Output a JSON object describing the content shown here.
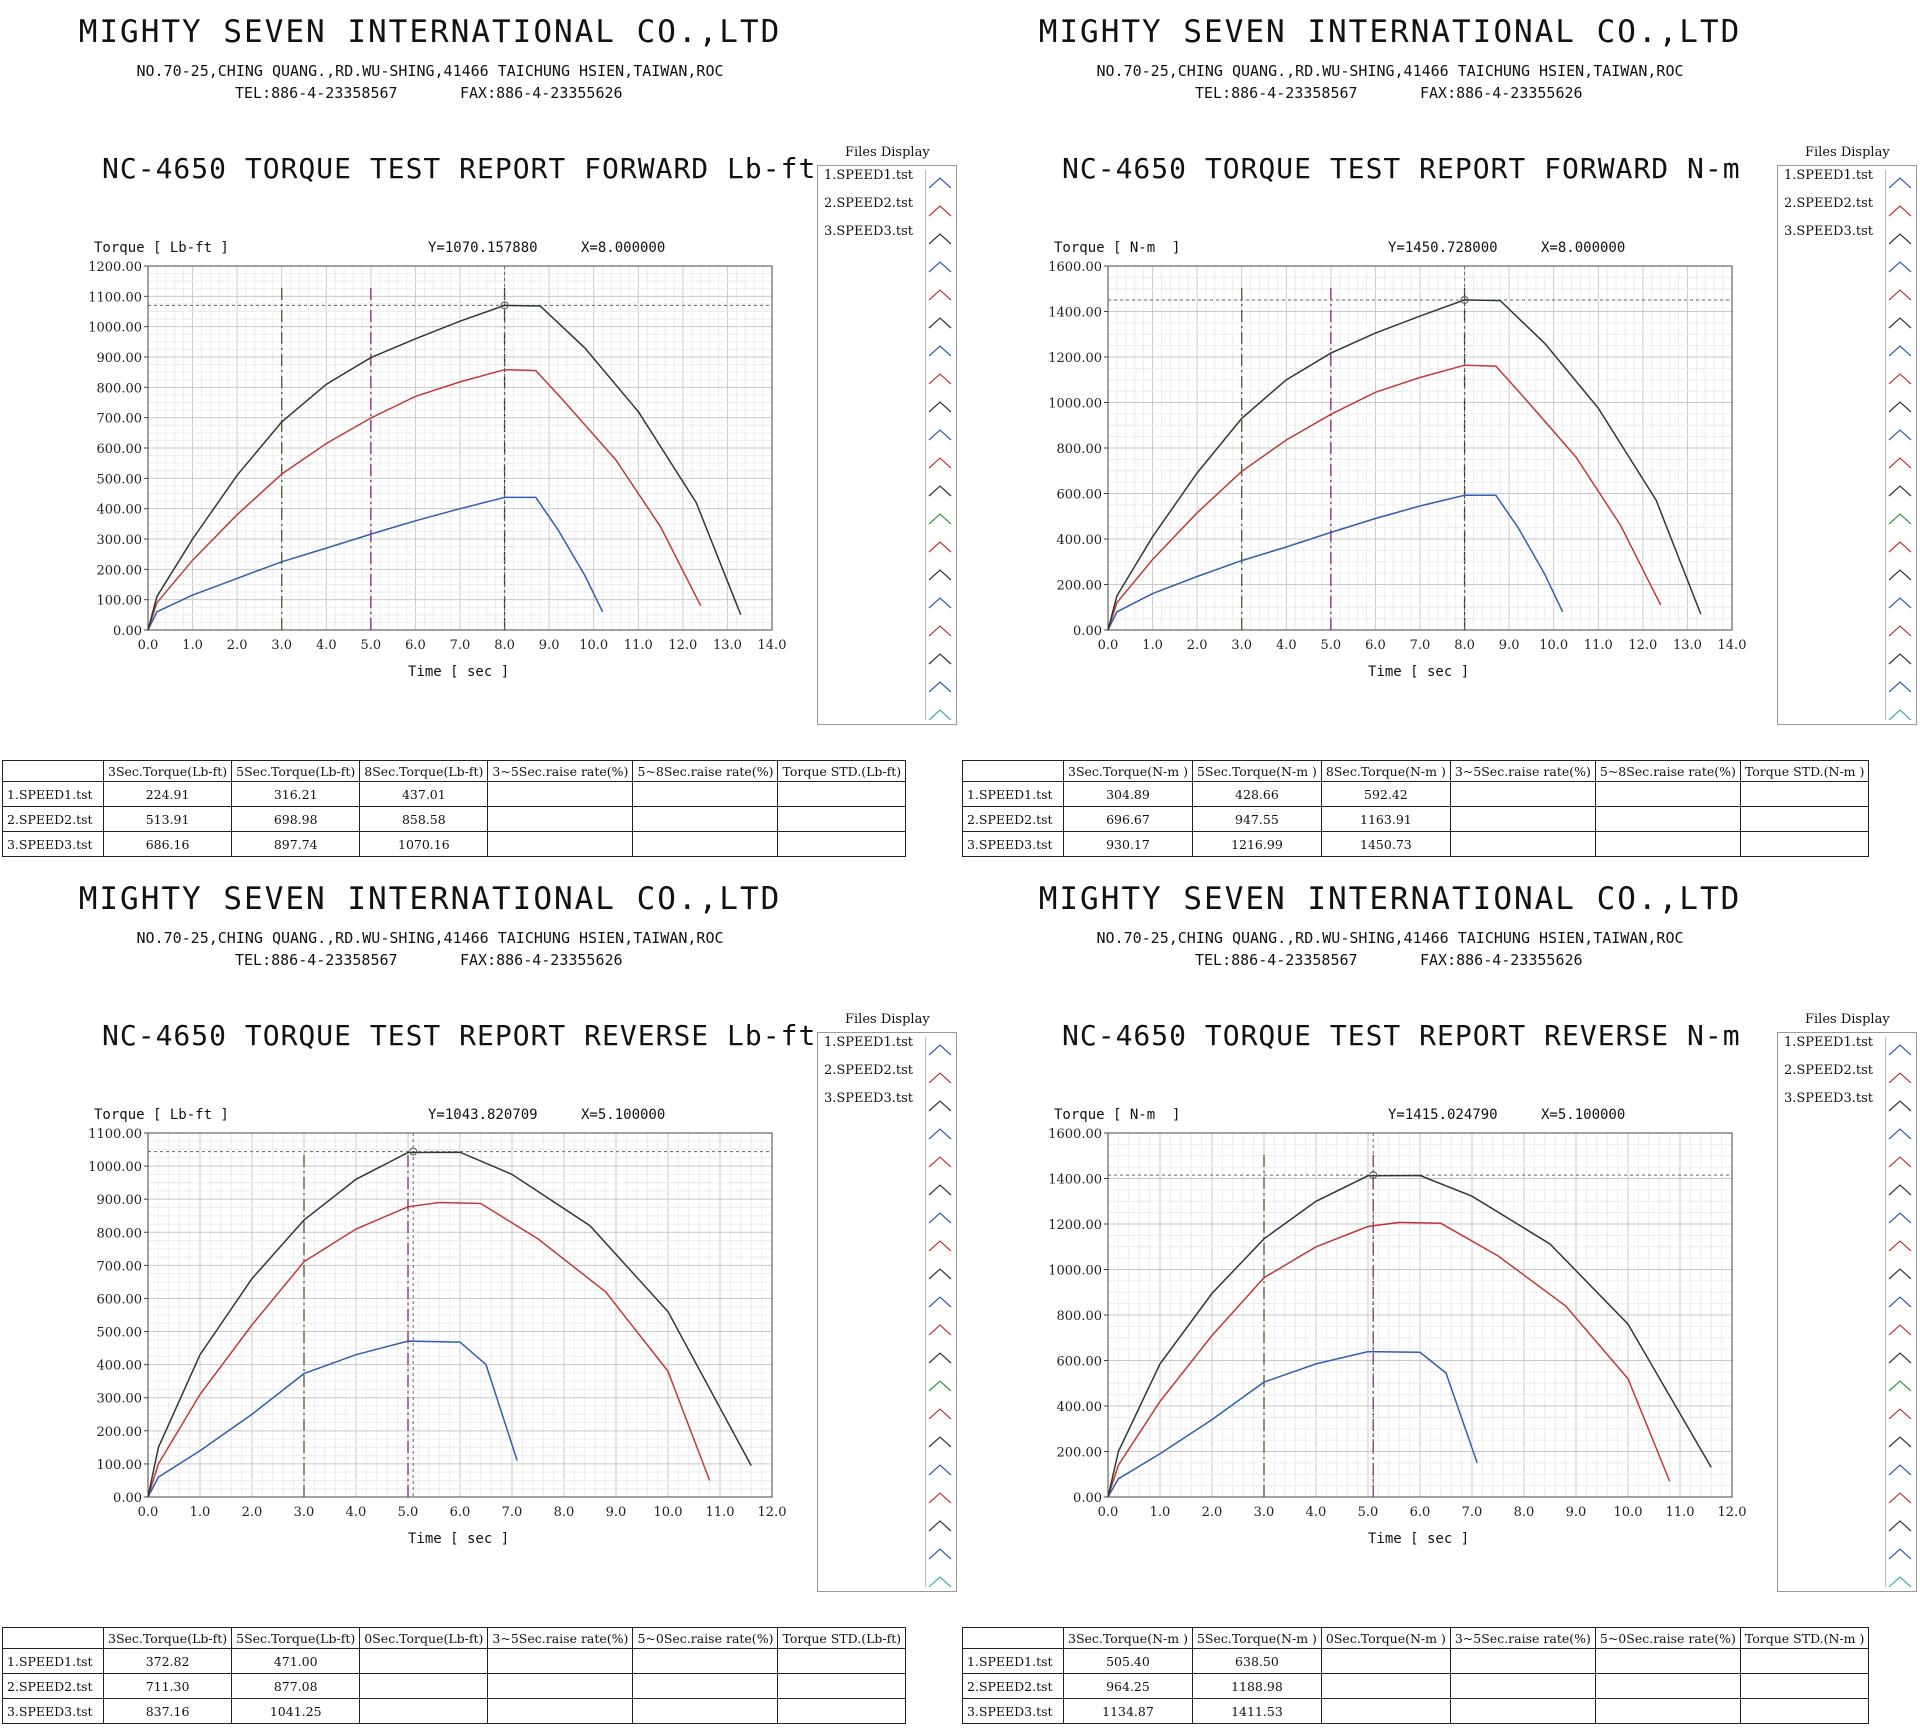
{
  "company": {
    "name": "MIGHTY SEVEN INTERNATIONAL CO.,LTD",
    "address": "NO.70-25,CHING QUANG.,RD.WU-SHING,41466 TAICHUNG HSIEN,TAIWAN,ROC",
    "tel": "TEL:886-4-23358567",
    "fax": "FAX:886-4-23355626"
  },
  "files_display": {
    "title": "Files Display",
    "items": [
      "1.SPEED1.tst",
      "2.SPEED2.tst",
      "3.SPEED3.tst"
    ]
  },
  "colors": {
    "speed1": "#2f5fb0",
    "speed2": "#c03a3a",
    "speed3": "#2e3a2e",
    "marker3": "#4a5a2a",
    "marker5": "#8a1f7a"
  },
  "panels": [
    {
      "title": "NC-4650 TORQUE TEST REPORT FORWARD Lb-ft",
      "ylabel": "Torque [ Lb-ft ]",
      "xlabel": "Time [ sec ]",
      "readout_y": "Y=1070.157880",
      "readout_x": "X=8.000000",
      "table": {
        "headers": [
          "",
          "3Sec.Torque(Lb-ft)",
          "5Sec.Torque(Lb-ft)",
          "8Sec.Torque(Lb-ft)",
          "3~5Sec.raise rate(%)",
          "5~8Sec.raise rate(%)",
          "Torque STD.(Lb-ft)"
        ],
        "rows": [
          [
            "1.SPEED1.tst",
            "224.91",
            "316.21",
            "437.01",
            "",
            "",
            ""
          ],
          [
            "2.SPEED2.tst",
            "513.91",
            "698.98",
            "858.58",
            "",
            "",
            ""
          ],
          [
            "3.SPEED3.tst",
            "686.16",
            "897.74",
            "1070.16",
            "",
            "",
            ""
          ]
        ]
      }
    },
    {
      "title": "NC-4650 TORQUE TEST REPORT FORWARD N-m",
      "ylabel": "Torque [ N-m  ]",
      "xlabel": "Time [ sec ]",
      "readout_y": "Y=1450.728000",
      "readout_x": "X=8.000000",
      "table": {
        "headers": [
          "",
          "3Sec.Torque(N-m )",
          "5Sec.Torque(N-m )",
          "8Sec.Torque(N-m )",
          "3~5Sec.raise rate(%)",
          "5~8Sec.raise rate(%)",
          "Torque STD.(N-m )"
        ],
        "rows": [
          [
            "1.SPEED1.tst",
            "304.89",
            "428.66",
            "592.42",
            "",
            "",
            ""
          ],
          [
            "2.SPEED2.tst",
            "696.67",
            "947.55",
            "1163.91",
            "",
            "",
            ""
          ],
          [
            "3.SPEED3.tst",
            "930.17",
            "1216.99",
            "1450.73",
            "",
            "",
            ""
          ]
        ]
      }
    },
    {
      "title": "NC-4650 TORQUE TEST REPORT REVERSE Lb-ft",
      "ylabel": "Torque [ Lb-ft ]",
      "xlabel": "Time [ sec ]",
      "readout_y": "Y=1043.820709",
      "readout_x": "X=5.100000",
      "table": {
        "headers": [
          "",
          "3Sec.Torque(Lb-ft)",
          "5Sec.Torque(Lb-ft)",
          "0Sec.Torque(Lb-ft)",
          "3~5Sec.raise rate(%)",
          "5~0Sec.raise rate(%)",
          "Torque STD.(Lb-ft)"
        ],
        "rows": [
          [
            "1.SPEED1.tst",
            "372.82",
            "471.00",
            "",
            "",
            "",
            ""
          ],
          [
            "2.SPEED2.tst",
            "711.30",
            "877.08",
            "",
            "",
            "",
            ""
          ],
          [
            "3.SPEED3.tst",
            "837.16",
            "1041.25",
            "",
            "",
            "",
            ""
          ]
        ]
      }
    },
    {
      "title": "NC-4650 TORQUE TEST REPORT REVERSE N-m",
      "ylabel": "Torque [ N-m  ]",
      "xlabel": "Time [ sec ]",
      "readout_y": "Y=1415.024790",
      "readout_x": "X=5.100000",
      "table": {
        "headers": [
          "",
          "3Sec.Torque(N-m )",
          "5Sec.Torque(N-m )",
          "0Sec.Torque(N-m )",
          "3~5Sec.raise rate(%)",
          "5~0Sec.raise rate(%)",
          "Torque STD.(N-m )"
        ],
        "rows": [
          [
            "1.SPEED1.tst",
            "505.40",
            "638.50",
            "",
            "",
            "",
            ""
          ],
          [
            "2.SPEED2.tst",
            "964.25",
            "1188.98",
            "",
            "",
            "",
            ""
          ],
          [
            "3.SPEED3.tst",
            "1134.87",
            "1411.53",
            "",
            "",
            "",
            ""
          ]
        ]
      }
    }
  ],
  "chart_data": [
    {
      "type": "line",
      "xlim": [
        0,
        14
      ],
      "ylim": [
        0,
        1200
      ],
      "xticks": [
        "0.0",
        "1.0",
        "2.0",
        "3.0",
        "4.0",
        "5.0",
        "6.0",
        "7.0",
        "8.0",
        "9.0",
        "10.0",
        "11.0",
        "12.0",
        "13.0",
        "14.0"
      ],
      "yticks": [
        "0.00",
        "100.00",
        "200.00",
        "300.00",
        "400.00",
        "500.00",
        "600.00",
        "700.00",
        "800.00",
        "900.00",
        "1000.00",
        "1100.00",
        "1200.00"
      ],
      "cursor": {
        "x": 8.0,
        "y": 1070.16
      },
      "markers": [
        3.0,
        5.0,
        8.0
      ],
      "series": [
        {
          "name": "1.SPEED1.tst",
          "points": [
            [
              0,
              0
            ],
            [
              0.2,
              60
            ],
            [
              1,
              115
            ],
            [
              2,
              170
            ],
            [
              3,
              225
            ],
            [
              4,
              270
            ],
            [
              5,
              316
            ],
            [
              6,
              360
            ],
            [
              7,
              400
            ],
            [
              8,
              437
            ],
            [
              8.7,
              437
            ],
            [
              9.2,
              330
            ],
            [
              9.8,
              180
            ],
            [
              10.2,
              60
            ]
          ]
        },
        {
          "name": "2.SPEED2.tst",
          "points": [
            [
              0,
              0
            ],
            [
              0.2,
              90
            ],
            [
              1,
              230
            ],
            [
              2,
              380
            ],
            [
              3,
              514
            ],
            [
              4,
              615
            ],
            [
              5,
              699
            ],
            [
              6,
              770
            ],
            [
              7,
              818
            ],
            [
              8,
              858
            ],
            [
              8.7,
              855
            ],
            [
              9.3,
              760
            ],
            [
              10.5,
              560
            ],
            [
              11.5,
              340
            ],
            [
              12.4,
              80
            ]
          ]
        },
        {
          "name": "3.SPEED3.tst",
          "points": [
            [
              0,
              0
            ],
            [
              0.2,
              110
            ],
            [
              1,
              300
            ],
            [
              2,
              510
            ],
            [
              3,
              686
            ],
            [
              4,
              810
            ],
            [
              5,
              898
            ],
            [
              6,
              960
            ],
            [
              7,
              1018
            ],
            [
              8,
              1070
            ],
            [
              8.8,
              1068
            ],
            [
              9.8,
              930
            ],
            [
              11,
              720
            ],
            [
              12.3,
              420
            ],
            [
              13.3,
              50
            ]
          ]
        }
      ]
    },
    {
      "type": "line",
      "xlim": [
        0,
        14
      ],
      "ylim": [
        0,
        1600
      ],
      "xticks": [
        "0.0",
        "1.0",
        "2.0",
        "3.0",
        "4.0",
        "5.0",
        "6.0",
        "7.0",
        "8.0",
        "9.0",
        "10.0",
        "11.0",
        "12.0",
        "13.0",
        "14.0"
      ],
      "yticks": [
        "0.00",
        "200.00",
        "400.00",
        "600.00",
        "800.00",
        "1000.00",
        "1200.00",
        "1400.00",
        "1600.00"
      ],
      "cursor": {
        "x": 8.0,
        "y": 1450.73
      },
      "markers": [
        3.0,
        5.0,
        8.0
      ],
      "series": [
        {
          "name": "1.SPEED1.tst",
          "points": [
            [
              0,
              0
            ],
            [
              0.2,
              80
            ],
            [
              1,
              160
            ],
            [
              2,
              235
            ],
            [
              3,
              305
            ],
            [
              4,
              365
            ],
            [
              5,
              429
            ],
            [
              6,
              490
            ],
            [
              7,
              545
            ],
            [
              8,
              592
            ],
            [
              8.7,
              592
            ],
            [
              9.2,
              450
            ],
            [
              9.8,
              245
            ],
            [
              10.2,
              80
            ]
          ]
        },
        {
          "name": "2.SPEED2.tst",
          "points": [
            [
              0,
              0
            ],
            [
              0.2,
              120
            ],
            [
              1,
              310
            ],
            [
              2,
              515
            ],
            [
              3,
              697
            ],
            [
              4,
              835
            ],
            [
              5,
              948
            ],
            [
              6,
              1045
            ],
            [
              7,
              1110
            ],
            [
              8,
              1164
            ],
            [
              8.7,
              1160
            ],
            [
              9.3,
              1030
            ],
            [
              10.5,
              760
            ],
            [
              11.5,
              460
            ],
            [
              12.4,
              110
            ]
          ]
        },
        {
          "name": "3.SPEED3.tst",
          "points": [
            [
              0,
              0
            ],
            [
              0.2,
              150
            ],
            [
              1,
              410
            ],
            [
              2,
              690
            ],
            [
              3,
              930
            ],
            [
              4,
              1100
            ],
            [
              5,
              1217
            ],
            [
              6,
              1305
            ],
            [
              7,
              1380
            ],
            [
              8,
              1451
            ],
            [
              8.8,
              1448
            ],
            [
              9.8,
              1260
            ],
            [
              11,
              975
            ],
            [
              12.3,
              570
            ],
            [
              13.3,
              70
            ]
          ]
        }
      ]
    },
    {
      "type": "line",
      "xlim": [
        0,
        12
      ],
      "ylim": [
        0,
        1100
      ],
      "xticks": [
        "0.0",
        "1.0",
        "2.0",
        "3.0",
        "4.0",
        "5.0",
        "6.0",
        "7.0",
        "8.0",
        "9.0",
        "10.0",
        "11.0",
        "12.0"
      ],
      "yticks": [
        "0.00",
        "100.00",
        "200.00",
        "300.00",
        "400.00",
        "500.00",
        "600.00",
        "700.00",
        "800.00",
        "900.00",
        "1000.00",
        "1100.00"
      ],
      "cursor": {
        "x": 5.1,
        "y": 1043.82
      },
      "markers": [
        3.0,
        5.0
      ],
      "series": [
        {
          "name": "1.SPEED1.tst",
          "points": [
            [
              0,
              0
            ],
            [
              0.2,
              60
            ],
            [
              1,
              140
            ],
            [
              2,
              250
            ],
            [
              3,
              373
            ],
            [
              4,
              430
            ],
            [
              5,
              471
            ],
            [
              6,
              468
            ],
            [
              6.5,
              400
            ],
            [
              7.1,
              110
            ]
          ]
        },
        {
          "name": "2.SPEED2.tst",
          "points": [
            [
              0,
              0
            ],
            [
              0.2,
              100
            ],
            [
              1,
              310
            ],
            [
              2,
              520
            ],
            [
              3,
              711
            ],
            [
              4,
              810
            ],
            [
              5,
              877
            ],
            [
              5.6,
              890
            ],
            [
              6.4,
              887
            ],
            [
              7.5,
              780
            ],
            [
              8.8,
              620
            ],
            [
              10,
              380
            ],
            [
              10.8,
              50
            ]
          ]
        },
        {
          "name": "3.SPEED3.tst",
          "points": [
            [
              0,
              0
            ],
            [
              0.2,
              150
            ],
            [
              1,
              430
            ],
            [
              2,
              660
            ],
            [
              3,
              837
            ],
            [
              4,
              960
            ],
            [
              5,
              1041
            ],
            [
              6,
              1042
            ],
            [
              7,
              975
            ],
            [
              8.5,
              820
            ],
            [
              10,
              560
            ],
            [
              11.6,
              95
            ]
          ]
        }
      ]
    },
    {
      "type": "line",
      "xlim": [
        0,
        12
      ],
      "ylim": [
        0,
        1600
      ],
      "xticks": [
        "0.0",
        "1.0",
        "2.0",
        "3.0",
        "4.0",
        "5.0",
        "6.0",
        "7.0",
        "8.0",
        "9.0",
        "10.0",
        "11.0",
        "12.0"
      ],
      "yticks": [
        "0.00",
        "200.00",
        "400.00",
        "600.00",
        "800.00",
        "1000.00",
        "1200.00",
        "1400.00",
        "1600.00"
      ],
      "cursor": {
        "x": 5.1,
        "y": 1415.02
      },
      "markers": [
        3.0,
        5.1
      ],
      "series": [
        {
          "name": "1.SPEED1.tst",
          "points": [
            [
              0,
              0
            ],
            [
              0.2,
              80
            ],
            [
              1,
              190
            ],
            [
              2,
              340
            ],
            [
              3,
              505
            ],
            [
              4,
              585
            ],
            [
              5,
              639
            ],
            [
              6,
              636
            ],
            [
              6.5,
              545
            ],
            [
              7.1,
              150
            ]
          ]
        },
        {
          "name": "2.SPEED2.tst",
          "points": [
            [
              0,
              0
            ],
            [
              0.2,
              140
            ],
            [
              1,
              420
            ],
            [
              2,
              710
            ],
            [
              3,
              964
            ],
            [
              4,
              1100
            ],
            [
              5,
              1189
            ],
            [
              5.6,
              1207
            ],
            [
              6.4,
              1203
            ],
            [
              7.5,
              1060
            ],
            [
              8.8,
              840
            ],
            [
              10,
              520
            ],
            [
              10.8,
              70
            ]
          ]
        },
        {
          "name": "3.SPEED3.tst",
          "points": [
            [
              0,
              0
            ],
            [
              0.2,
              200
            ],
            [
              1,
              585
            ],
            [
              2,
              895
            ],
            [
              3,
              1135
            ],
            [
              4,
              1300
            ],
            [
              5,
              1412
            ],
            [
              6,
              1413
            ],
            [
              7,
              1322
            ],
            [
              8.5,
              1112
            ],
            [
              10,
              760
            ],
            [
              11.6,
              130
            ]
          ]
        }
      ]
    }
  ]
}
